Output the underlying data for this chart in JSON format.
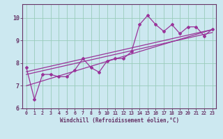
{
  "title": "",
  "xlabel": "Windchill (Refroidissement éolien,°C)",
  "ylabel": "",
  "bg_color": "#cce8f0",
  "line_color": "#993399",
  "grid_color": "#99ccbb",
  "axis_color": "#663366",
  "tick_color": "#663366",
  "xlim": [
    -0.5,
    23.5
  ],
  "ylim": [
    6.0,
    10.6
  ],
  "yticks": [
    6,
    7,
    8,
    9,
    10
  ],
  "xticks": [
    0,
    1,
    2,
    3,
    4,
    5,
    6,
    7,
    8,
    9,
    10,
    11,
    12,
    13,
    14,
    15,
    16,
    17,
    18,
    19,
    20,
    21,
    22,
    23
  ],
  "series1_x": [
    0,
    1,
    2,
    3,
    4,
    5,
    6,
    7,
    8,
    9,
    10,
    11,
    12,
    13,
    14,
    15,
    16,
    17,
    18,
    19,
    20,
    21,
    22,
    23
  ],
  "series1_y": [
    7.8,
    6.4,
    7.5,
    7.5,
    7.4,
    7.4,
    7.7,
    8.2,
    7.8,
    7.6,
    8.1,
    8.2,
    8.2,
    8.5,
    9.7,
    10.1,
    9.7,
    9.4,
    9.7,
    9.3,
    9.6,
    9.6,
    9.2,
    9.5
  ],
  "trend1_x": [
    0,
    23
  ],
  "trend1_y": [
    7.0,
    9.48
  ],
  "trend2_x": [
    0,
    23
  ],
  "trend2_y": [
    7.5,
    9.35
  ],
  "trend3_x": [
    0,
    23
  ],
  "trend3_y": [
    7.62,
    9.48
  ]
}
